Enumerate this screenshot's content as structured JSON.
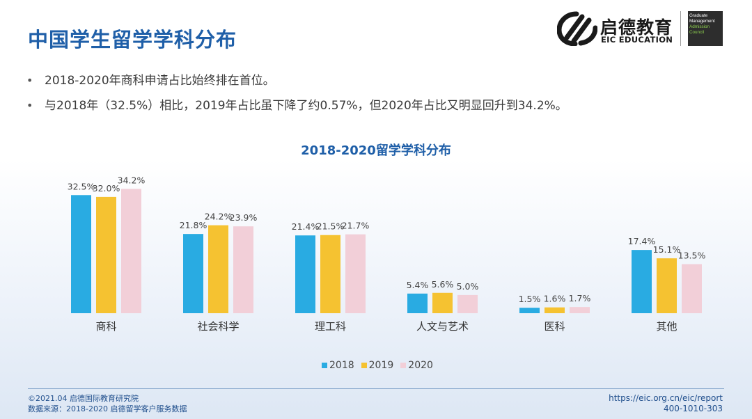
{
  "header": {
    "title": "中国学生留学学科分布"
  },
  "logo": {
    "icon": "eic-logo-icon",
    "name_cn": "启德教育",
    "name_en": "EIC EDUCATION",
    "partner_lines": [
      "Graduate",
      "Management",
      "Admission",
      "Council"
    ],
    "partner_icon": "gmac-logo-icon"
  },
  "bullets": [
    "2018-2020年商科申请占比始终排在首位。",
    "与2018年（32.5%）相比，2019年占比虽下降了约0.57%，但2020年占比又明显回升到34.2%。"
  ],
  "chart_data": {
    "type": "bar",
    "title": "2018-2020留学学科分布",
    "categories": [
      "商科",
      "社会科学",
      "理工科",
      "人文与艺术",
      "医科",
      "其他"
    ],
    "series": [
      {
        "name": "2018",
        "color": "#29abe2",
        "values": [
          32.5,
          21.8,
          21.4,
          5.4,
          1.5,
          17.4
        ],
        "labels": [
          "32.5%",
          "21.8%",
          "21.4%",
          "5.4%",
          "1.5%",
          "17.4%"
        ]
      },
      {
        "name": "2019",
        "color": "#f5c231",
        "values": [
          32.0,
          24.2,
          21.5,
          5.6,
          1.6,
          15.1
        ],
        "labels": [
          "32.0%",
          "24.2%",
          "21.5%",
          "5.6%",
          "1.6%",
          "15.1%"
        ]
      },
      {
        "name": "2020",
        "color": "#f2cfd8",
        "values": [
          34.2,
          23.9,
          21.7,
          5.0,
          1.7,
          13.5
        ],
        "labels": [
          "34.2%",
          "23.9%",
          "21.7%",
          "5.0%",
          "1.7%",
          "13.5%"
        ]
      }
    ],
    "ylim": [
      0,
      36
    ],
    "legend": "bottom-center",
    "grid": false
  },
  "footer": {
    "copyright": "©2021.04 启德国际教育研究院",
    "source": "数据来源：2018-2020 启德留学客户服务数据",
    "url": "https://eic.org.cn/eic/report",
    "phone": "400-1010-303"
  }
}
